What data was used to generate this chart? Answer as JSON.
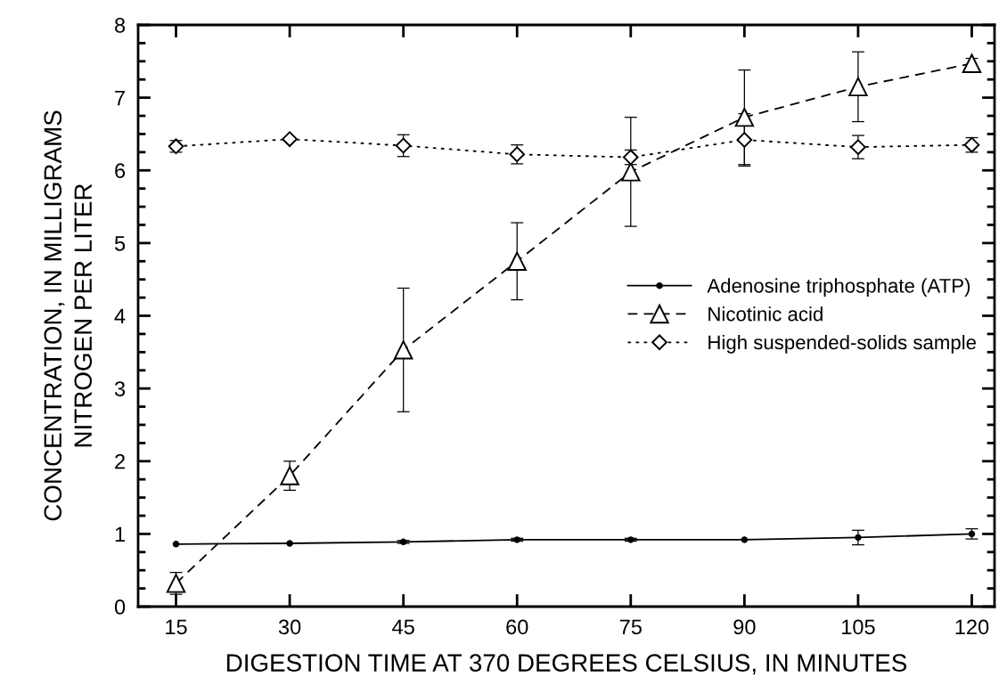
{
  "chart_data": {
    "type": "line",
    "xlabel": "DIGESTION TIME AT 370 DEGREES CELSIUS, IN MINUTES",
    "ylabel": "CONCENTRATION, IN MILLIGRAMS\nNITROGEN PER LITER",
    "x": [
      15,
      30,
      45,
      60,
      75,
      90,
      105,
      120
    ],
    "series": [
      {
        "name": "Adenosine triphosphate (ATP)",
        "color": "#000000",
        "marker": "circle",
        "line_style": "solid",
        "values": [
          0.86,
          0.87,
          0.89,
          0.92,
          0.92,
          0.92,
          0.95,
          1.0
        ],
        "errors": [
          null,
          null,
          0.02,
          0.02,
          0.02,
          null,
          0.1,
          0.07
        ]
      },
      {
        "name": "Nicotinic acid",
        "color": "#000000",
        "marker": "triangle",
        "line_style": "dashed",
        "values": [
          0.32,
          1.8,
          3.53,
          4.75,
          5.98,
          6.73,
          7.15,
          7.47
        ],
        "errors": [
          0.15,
          0.2,
          0.85,
          0.53,
          0.75,
          0.65,
          0.48,
          0.07
        ]
      },
      {
        "name": "High suspended-solids sample",
        "color": "#000000",
        "marker": "diamond",
        "line_style": "dotted",
        "values": [
          6.33,
          6.43,
          6.34,
          6.22,
          6.18,
          6.42,
          6.32,
          6.35
        ],
        "errors": [
          0.08,
          null,
          0.15,
          0.13,
          0.1,
          0.36,
          0.16,
          0.1
        ]
      }
    ],
    "xlim": [
      10,
      123
    ],
    "xticks": [
      15,
      30,
      45,
      60,
      75,
      90,
      105,
      120
    ],
    "ylim": [
      0,
      8
    ],
    "yticks": [
      0,
      {
        "value": 0.25,
        "label": null
      },
      {
        "value": 0.5,
        "label": null
      },
      {
        "value": 0.75,
        "label": null
      },
      1,
      {
        "value": 1.25,
        "label": null
      },
      {
        "value": 1.5,
        "label": null
      },
      {
        "value": 1.75,
        "label": null
      },
      2,
      {
        "value": 2.25,
        "label": null
      },
      {
        "value": 2.5,
        "label": null
      },
      {
        "value": 2.75,
        "label": null
      },
      3,
      {
        "value": 3.25,
        "label": null
      },
      {
        "value": 3.5,
        "label": null
      },
      {
        "value": 3.75,
        "label": null
      },
      4,
      {
        "value": 4.25,
        "label": null
      },
      {
        "value": 4.5,
        "label": null
      },
      {
        "value": 4.75,
        "label": null
      },
      5,
      {
        "value": 5.25,
        "label": null
      },
      {
        "value": 5.5,
        "label": null
      },
      {
        "value": 5.75,
        "label": null
      },
      6,
      {
        "value": 6.25,
        "label": null
      },
      {
        "value": 6.5,
        "label": null
      },
      {
        "value": 6.75,
        "label": null
      },
      7,
      {
        "value": 7.25,
        "label": null
      },
      {
        "value": 7.5,
        "label": null
      },
      {
        "value": 7.75,
        "label": null
      },
      8
    ],
    "legend": "center right",
    "grid": false
  }
}
